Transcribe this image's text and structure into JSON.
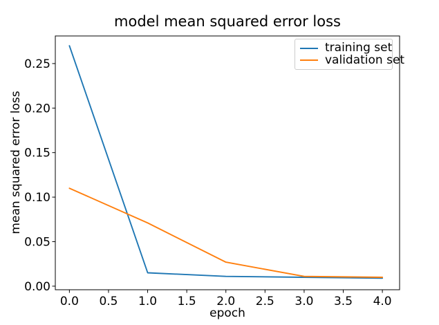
{
  "chart_data": {
    "type": "line",
    "title": "model mean squared error loss",
    "xlabel": "epoch",
    "ylabel": "mean squared error loss",
    "x": [
      0,
      1,
      2,
      3,
      4
    ],
    "series": [
      {
        "name": "training set",
        "color": "#1f77b4",
        "values": [
          0.27,
          0.015,
          0.011,
          0.01,
          0.009
        ]
      },
      {
        "name": "validation set",
        "color": "#ff7f0e",
        "values": [
          0.11,
          0.071,
          0.027,
          0.011,
          0.01
        ]
      }
    ],
    "xlim": [
      -0.18,
      4.22
    ],
    "ylim": [
      -0.004,
      0.281
    ],
    "xtick_values": [
      0.0,
      0.5,
      1.0,
      1.5,
      2.0,
      2.5,
      3.0,
      3.5,
      4.0
    ],
    "xtick_labels": [
      "0.0",
      "0.5",
      "1.0",
      "1.5",
      "2.0",
      "2.5",
      "3.0",
      "3.5",
      "4.0"
    ],
    "ytick_values": [
      0.0,
      0.05,
      0.1,
      0.15,
      0.2,
      0.25
    ],
    "ytick_labels": [
      "0.00",
      "0.05",
      "0.10",
      "0.15",
      "0.20",
      "0.25"
    ],
    "grid": false,
    "legend": {
      "position": "upper right",
      "entries": [
        "training set",
        "validation set"
      ]
    },
    "background_color": "#ffffff",
    "axis_color": "#000000"
  }
}
